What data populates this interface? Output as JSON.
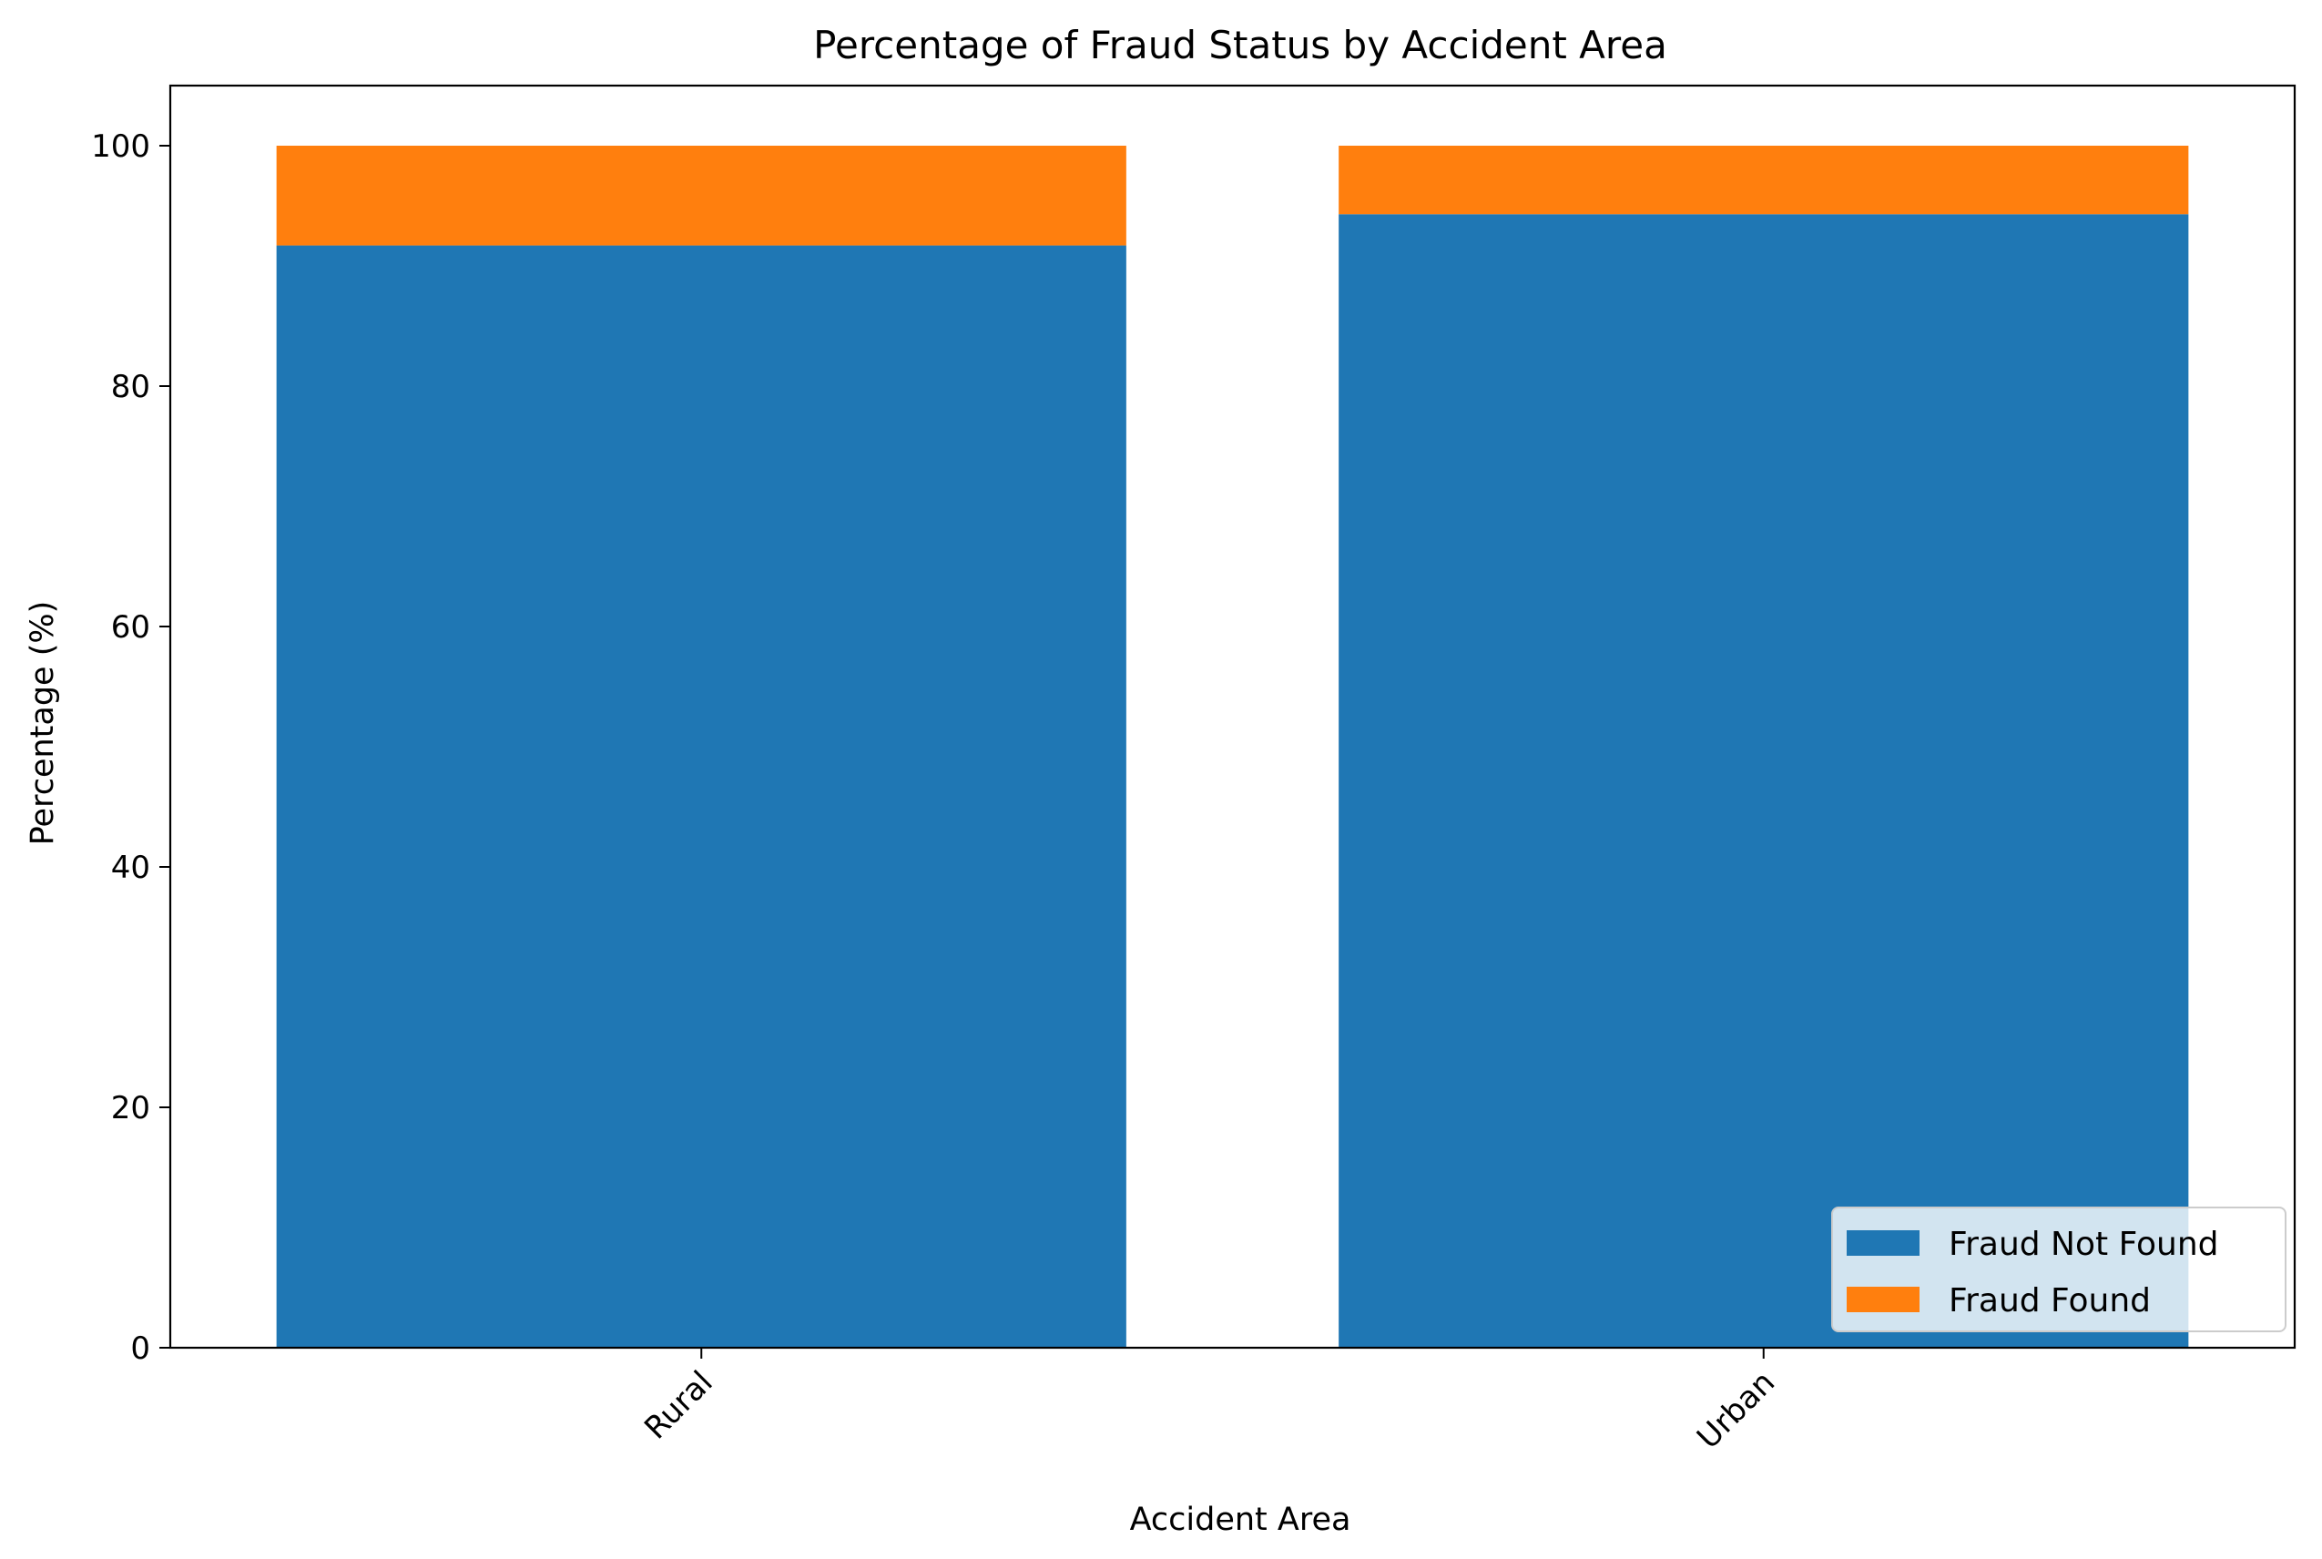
{
  "chart_data": {
    "type": "bar",
    "stacked": true,
    "title": "Percentage of Fraud Status by Accident Area",
    "xlabel": "Accident Area",
    "ylabel": "Percentage (%)",
    "categories": [
      "Rural",
      "Urban"
    ],
    "series": [
      {
        "name": "Fraud Not Found",
        "values": [
          91.7,
          94.3
        ],
        "color": "#1f77b4"
      },
      {
        "name": "Fraud Found",
        "values": [
          8.3,
          5.7
        ],
        "color": "#ff7f0e"
      }
    ],
    "ylim": [
      0,
      105
    ],
    "yticks": [
      0,
      20,
      40,
      60,
      80,
      100
    ],
    "grid": false,
    "legend_position": "bottom-right"
  }
}
